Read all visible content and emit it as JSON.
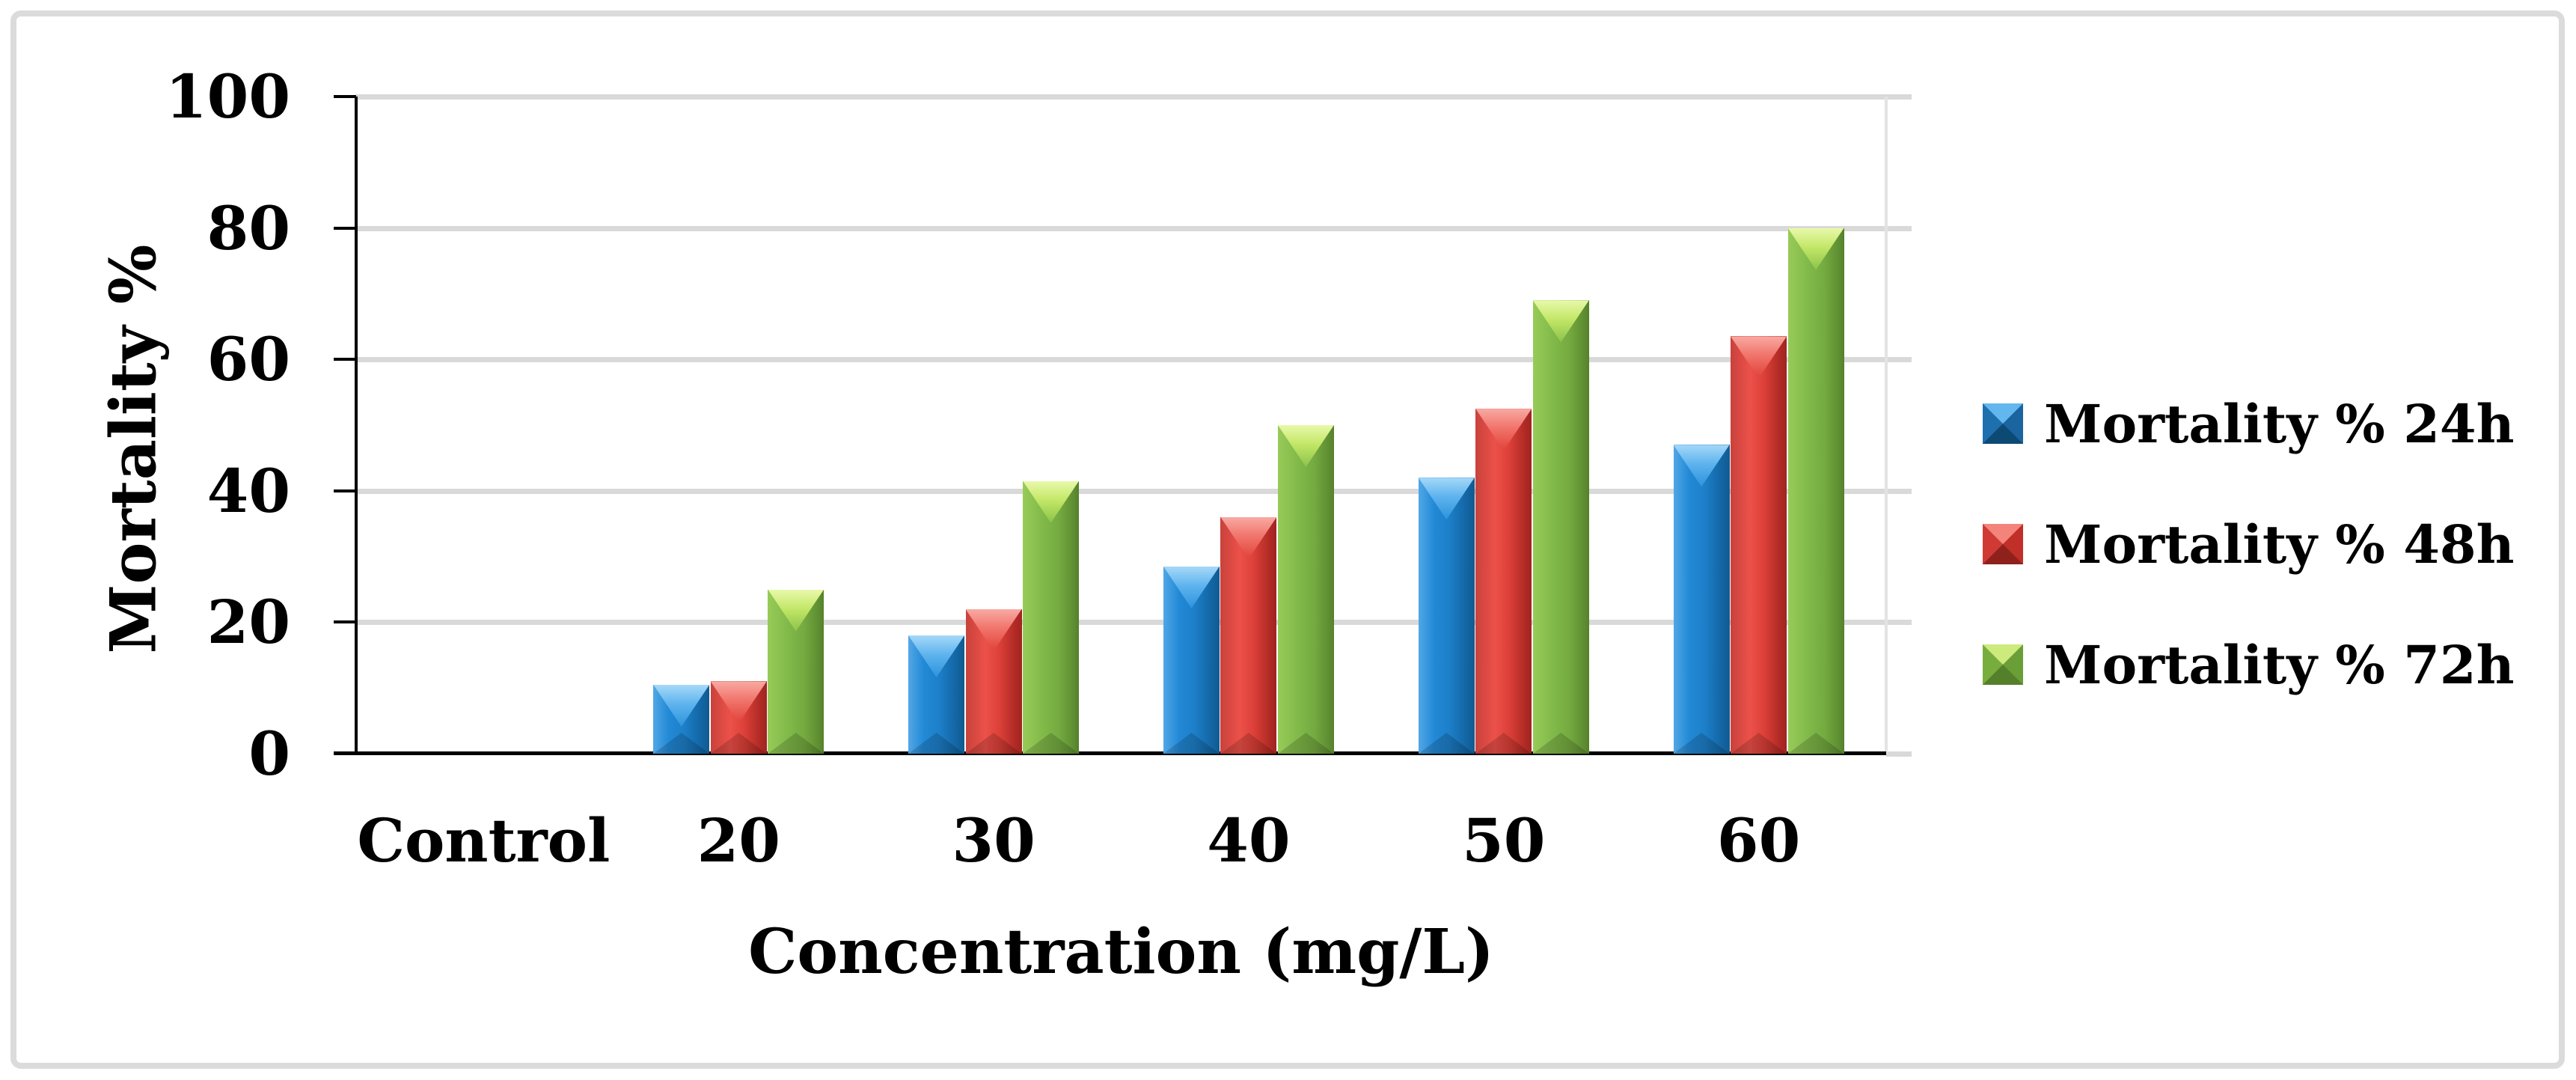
{
  "figure": {
    "background": "#ffffff",
    "border_color": "#dbdbdb"
  },
  "colors": {
    "gridline": "#d9d9d9",
    "axis": "#000000",
    "text": "#000000",
    "series_blue": "#1f87d3",
    "series_red": "#e0403a",
    "series_green": "#7cb445"
  },
  "chart_data": {
    "type": "bar",
    "title": "",
    "categories": [
      "Control",
      "20",
      "30",
      "40",
      "50",
      "60"
    ],
    "series": [
      {
        "key": "24h",
        "name": "Mortality % 24h",
        "color": "#1f87d3",
        "values": [
          0,
          10.5,
          18,
          28.5,
          42,
          47
        ]
      },
      {
        "key": "48h",
        "name": "Mortality % 48h",
        "color": "#e0403a",
        "values": [
          0,
          11,
          22,
          36,
          52.5,
          63.5
        ]
      },
      {
        "key": "72h",
        "name": "Mortality % 72h",
        "color": "#7cb445",
        "values": [
          0,
          25,
          41.5,
          50,
          69,
          80
        ]
      }
    ],
    "xlabel": "Concentration (mg/L)",
    "ylabel": "Mortality %",
    "ylim": [
      0,
      100
    ],
    "yticks": [
      0,
      20,
      40,
      60,
      80,
      100
    ],
    "grid": true,
    "legend_position": "right"
  }
}
